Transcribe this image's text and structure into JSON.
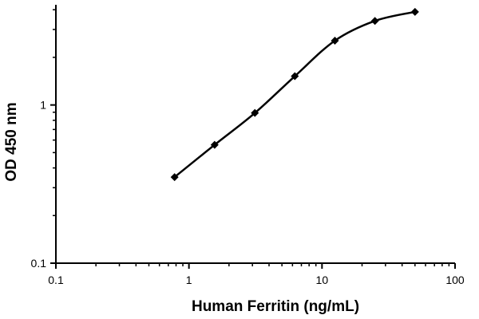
{
  "chart_data": {
    "type": "line",
    "xlabel": "Human Ferritin (ng/mL)",
    "ylabel": "OD 450 nm",
    "x_scale": "log",
    "y_scale": "log",
    "xlim": [
      0.1,
      100
    ],
    "ylim": [
      0.1,
      4.2
    ],
    "x_ticks": [
      "0.1",
      "1",
      "10",
      "100"
    ],
    "y_ticks": [
      "0.1",
      "1"
    ],
    "grid": false,
    "legend": "none",
    "colors": {
      "line": "#000000",
      "marker": "#000000",
      "axis": "#000000"
    },
    "marker": "diamond",
    "series": [
      {
        "x": [
          0.78,
          1.56,
          3.13,
          6.25,
          12.5,
          25,
          50
        ],
        "y": [
          0.35,
          0.56,
          0.89,
          1.52,
          2.55,
          3.4,
          3.88
        ]
      }
    ]
  }
}
